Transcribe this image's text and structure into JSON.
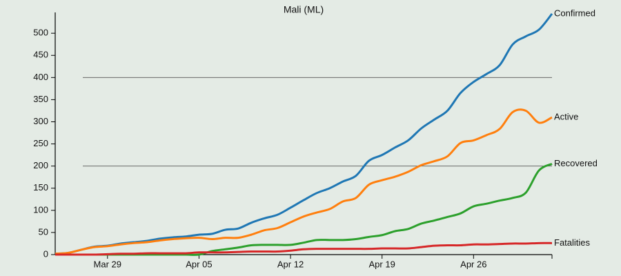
{
  "chart_data": {
    "type": "line",
    "title": "Mali (ML)",
    "categories": [
      null,
      null,
      null,
      null,
      "Mar 29",
      null,
      null,
      null,
      null,
      null,
      null,
      "Apr 05",
      null,
      null,
      null,
      null,
      null,
      null,
      "Apr 12",
      null,
      null,
      null,
      null,
      null,
      null,
      "Apr 19",
      null,
      null,
      null,
      null,
      null,
      null,
      "Apr 26",
      null,
      null,
      null,
      null,
      null,
      null
    ],
    "series": [
      {
        "name": "Confirmed",
        "color": "#1f77b4",
        "values": [
          2,
          4,
          11,
          18,
          20,
          25,
          28,
          31,
          36,
          39,
          41,
          45,
          47,
          56,
          59,
          72,
          82,
          90,
          106,
          123,
          139,
          150,
          165,
          178,
          212,
          225,
          242,
          258,
          285,
          305,
          325,
          365,
          390,
          408,
          428,
          475,
          493,
          508,
          544
        ]
      },
      {
        "name": "Active",
        "color": "#ff7f0e",
        "values": [
          2,
          4,
          11,
          17,
          19,
          23,
          26,
          28,
          32,
          35,
          37,
          38,
          35,
          38,
          38,
          45,
          55,
          60,
          73,
          86,
          95,
          103,
          120,
          128,
          158,
          168,
          176,
          187,
          202,
          211,
          222,
          252,
          258,
          270,
          284,
          322,
          325,
          298,
          310
        ]
      },
      {
        "name": "Recovered",
        "color": "#2ca02c",
        "values": [
          0,
          0,
          0,
          0,
          0,
          0,
          0,
          0,
          0,
          0,
          0,
          0,
          8,
          12,
          16,
          21,
          22,
          22,
          22,
          27,
          33,
          33,
          33,
          35,
          40,
          44,
          53,
          58,
          70,
          77,
          85,
          93,
          109,
          115,
          122,
          128,
          140,
          190,
          205
        ]
      },
      {
        "name": "Fatalities",
        "color": "#d62728",
        "values": [
          0,
          0,
          0,
          0,
          1,
          2,
          2,
          3,
          3,
          3,
          3,
          5,
          5,
          5,
          6,
          7,
          7,
          7,
          9,
          12,
          13,
          13,
          13,
          13,
          13,
          14,
          14,
          14,
          17,
          20,
          21,
          21,
          23,
          23,
          24,
          25,
          25,
          26,
          26
        ]
      }
    ],
    "ylim": [
      0,
      547
    ],
    "yticks": [
      0,
      50,
      100,
      150,
      200,
      250,
      300,
      350,
      400,
      450,
      500
    ],
    "grid_lines": [
      200,
      400
    ]
  }
}
